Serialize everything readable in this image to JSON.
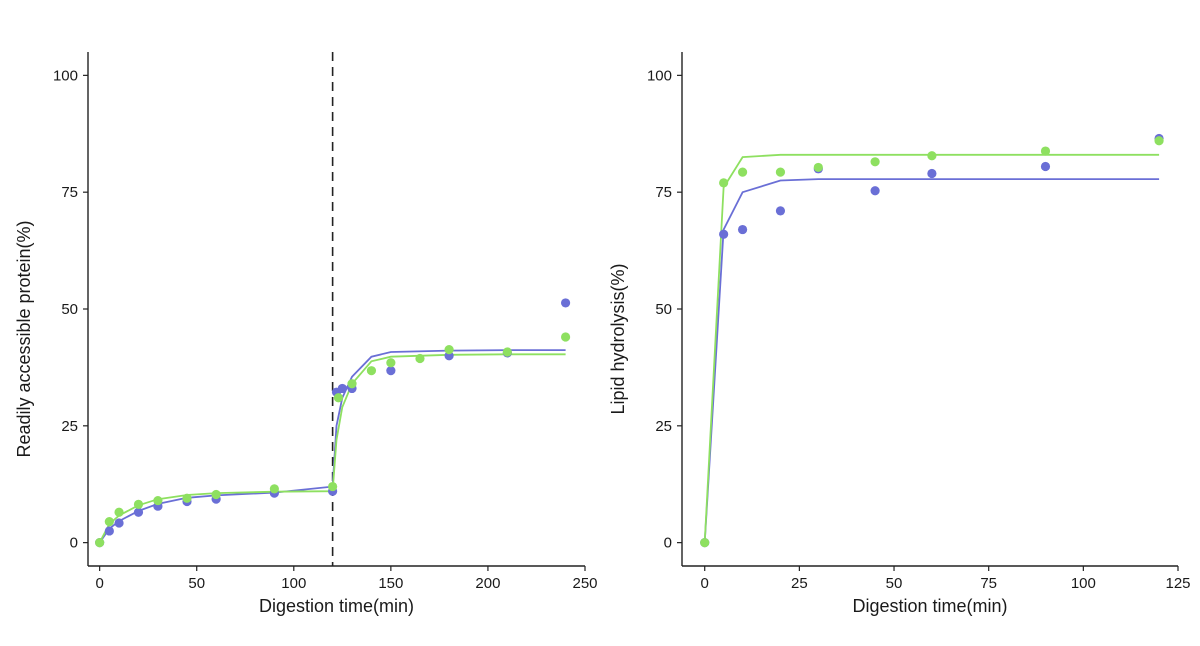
{
  "chart_data": [
    {
      "type": "scatter",
      "title": "",
      "xlabel": "Digestion time(min)",
      "ylabel": "Readily accessible protein(%)",
      "xlim": [
        -6,
        250
      ],
      "ylim": [
        -5,
        105
      ],
      "xticks": [
        0,
        50,
        100,
        150,
        200,
        250
      ],
      "yticks": [
        0,
        25,
        50,
        75,
        100
      ],
      "grid": false,
      "legend": "none",
      "reference_line": {
        "axis": "x",
        "value": 120,
        "style": "dashed"
      },
      "series": [
        {
          "color": "#6a6fd6",
          "points": [
            [
              0,
              0
            ],
            [
              5,
              2.5
            ],
            [
              10,
              4.2
            ],
            [
              20,
              6.5
            ],
            [
              30,
              7.8
            ],
            [
              45,
              8.8
            ],
            [
              60,
              9.3
            ],
            [
              90,
              10.6
            ],
            [
              120,
              11
            ],
            [
              122,
              32.2
            ],
            [
              125,
              33
            ],
            [
              130,
              33
            ],
            [
              150,
              36.8
            ],
            [
              180,
              40
            ],
            [
              210,
              40.6
            ],
            [
              240,
              51.3
            ]
          ],
          "fit": [
            [
              0,
              0
            ],
            [
              5,
              3
            ],
            [
              10,
              4.6
            ],
            [
              20,
              6.8
            ],
            [
              30,
              8.3
            ],
            [
              45,
              9.6
            ],
            [
              60,
              10.1
            ],
            [
              90,
              10.7
            ],
            [
              120,
              12
            ],
            [
              122,
              25
            ],
            [
              125,
              31
            ],
            [
              130,
              35.5
            ],
            [
              140,
              39.8
            ],
            [
              150,
              40.8
            ],
            [
              180,
              41.1
            ],
            [
              210,
              41.2
            ],
            [
              240,
              41.2
            ]
          ]
        },
        {
          "color": "#8ee060",
          "points": [
            [
              0,
              0
            ],
            [
              5,
              4.5
            ],
            [
              10,
              6.5
            ],
            [
              20,
              8.2
            ],
            [
              30,
              9
            ],
            [
              45,
              9.5
            ],
            [
              60,
              10.3
            ],
            [
              90,
              11.5
            ],
            [
              120,
              12
            ],
            [
              123,
              31
            ],
            [
              130,
              34
            ],
            [
              140,
              36.8
            ],
            [
              150,
              38.5
            ],
            [
              165,
              39.4
            ],
            [
              180,
              41.3
            ],
            [
              210,
              40.8
            ],
            [
              240,
              44
            ]
          ],
          "fit": [
            [
              0,
              0
            ],
            [
              5,
              4
            ],
            [
              10,
              5.8
            ],
            [
              20,
              8
            ],
            [
              30,
              9.3
            ],
            [
              45,
              10.2
            ],
            [
              60,
              10.6
            ],
            [
              90,
              10.9
            ],
            [
              120,
              11
            ],
            [
              122,
              22
            ],
            [
              125,
              29
            ],
            [
              130,
              34
            ],
            [
              140,
              38.8
            ],
            [
              150,
              39.8
            ],
            [
              180,
              40.2
            ],
            [
              210,
              40.3
            ],
            [
              240,
              40.3
            ]
          ]
        }
      ]
    },
    {
      "type": "scatter",
      "title": "",
      "xlabel": "Digestion time(min)",
      "ylabel": "Lipid hydrolysis(%)",
      "xlim": [
        -6,
        125
      ],
      "ylim": [
        -5,
        105
      ],
      "xticks": [
        0,
        25,
        50,
        75,
        100,
        125
      ],
      "yticks": [
        0,
        25,
        50,
        75,
        100
      ],
      "grid": false,
      "legend": "none",
      "series": [
        {
          "color": "#6a6fd6",
          "points": [
            [
              0,
              0
            ],
            [
              5,
              66
            ],
            [
              10,
              67
            ],
            [
              20,
              71
            ],
            [
              30,
              80
            ],
            [
              45,
              75.3
            ],
            [
              60,
              79
            ],
            [
              90,
              80.5
            ],
            [
              120,
              86.5
            ]
          ],
          "fit": [
            [
              0,
              0
            ],
            [
              5,
              67
            ],
            [
              10,
              75
            ],
            [
              20,
              77.5
            ],
            [
              30,
              77.8
            ],
            [
              60,
              77.8
            ],
            [
              90,
              77.8
            ],
            [
              120,
              77.8
            ]
          ]
        },
        {
          "color": "#8ee060",
          "points": [
            [
              0,
              0
            ],
            [
              5,
              77
            ],
            [
              10,
              79.3
            ],
            [
              20,
              79.3
            ],
            [
              30,
              80.3
            ],
            [
              45,
              81.5
            ],
            [
              60,
              82.8
            ],
            [
              90,
              83.8
            ],
            [
              120,
              86
            ]
          ],
          "fit": [
            [
              0,
              0
            ],
            [
              5,
              76
            ],
            [
              10,
              82.5
            ],
            [
              20,
              83
            ],
            [
              30,
              83
            ],
            [
              60,
              83
            ],
            [
              90,
              83
            ],
            [
              120,
              83
            ]
          ]
        }
      ]
    }
  ]
}
